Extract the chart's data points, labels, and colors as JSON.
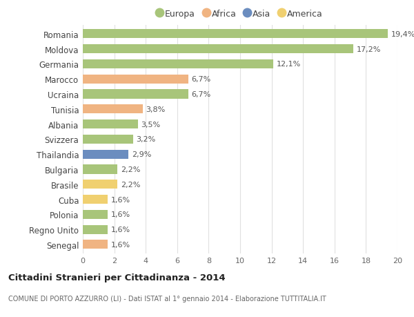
{
  "categories": [
    "Romania",
    "Moldova",
    "Germania",
    "Marocco",
    "Ucraina",
    "Tunisia",
    "Albania",
    "Svizzera",
    "Thailandia",
    "Bulgaria",
    "Brasile",
    "Cuba",
    "Polonia",
    "Regno Unito",
    "Senegal"
  ],
  "values": [
    19.4,
    17.2,
    12.1,
    6.7,
    6.7,
    3.8,
    3.5,
    3.2,
    2.9,
    2.2,
    2.2,
    1.6,
    1.6,
    1.6,
    1.6
  ],
  "labels": [
    "19,4%",
    "17,2%",
    "12,1%",
    "6,7%",
    "6,7%",
    "3,8%",
    "3,5%",
    "3,2%",
    "2,9%",
    "2,2%",
    "2,2%",
    "1,6%",
    "1,6%",
    "1,6%",
    "1,6%"
  ],
  "colors": [
    "#a8c57a",
    "#a8c57a",
    "#a8c57a",
    "#f0b482",
    "#a8c57a",
    "#f0b482",
    "#a8c57a",
    "#a8c57a",
    "#6b8dbf",
    "#a8c57a",
    "#f0d070",
    "#f0d070",
    "#a8c57a",
    "#a8c57a",
    "#f0b482"
  ],
  "continent_names": [
    "Europa",
    "Africa",
    "Asia",
    "America"
  ],
  "continent_colors": [
    "#a8c57a",
    "#f0b482",
    "#6b8dbf",
    "#f0d070"
  ],
  "title": "Cittadini Stranieri per Cittadinanza - 2014",
  "subtitle": "COMUNE DI PORTO AZZURRO (LI) - Dati ISTAT al 1° gennaio 2014 - Elaborazione TUTTITALIA.IT",
  "xlim": [
    0,
    20
  ],
  "xticks": [
    0,
    2,
    4,
    6,
    8,
    10,
    12,
    14,
    16,
    18,
    20
  ],
  "bg_color": "#ffffff",
  "grid_color": "#e0e0e0",
  "label_fontsize": 8,
  "bar_height": 0.6
}
